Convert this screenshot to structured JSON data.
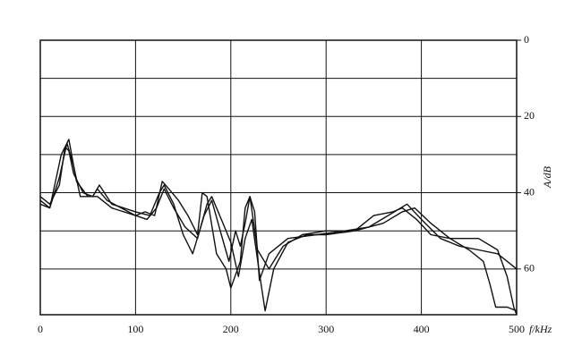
{
  "chart_data": {
    "type": "line",
    "x_label": "f/kHz",
    "y_label": "A/dB",
    "xlim": [
      0,
      500
    ],
    "xticks": [
      0,
      100,
      200,
      300,
      400,
      500
    ],
    "ylim": [
      0,
      72
    ],
    "yticks": [
      0,
      20,
      40,
      60
    ],
    "minor_yticks": [
      10,
      30,
      50
    ],
    "y_inverted": true,
    "y_axis_side": "right",
    "grid": true,
    "series": [
      {
        "color": "#111111",
        "x": [
          0,
          10,
          20,
          26,
          30,
          35,
          45,
          55,
          60,
          70,
          85,
          100,
          110,
          120,
          128,
          135,
          145,
          155,
          165,
          170,
          175,
          185,
          195,
          200,
          210,
          215,
          220,
          228,
          240,
          255,
          275,
          300,
          330,
          350,
          370,
          380,
          395,
          410,
          430,
          450,
          465,
          472,
          478,
          490,
          500
        ],
        "values": [
          41,
          43,
          38,
          28,
          29,
          35,
          40,
          41,
          39,
          42,
          44,
          46,
          45,
          46,
          37,
          39,
          42,
          46,
          51,
          40,
          41,
          56,
          60,
          65,
          58,
          44,
          41,
          55,
          60,
          54,
          51,
          50,
          50,
          46,
          45,
          44,
          47,
          51,
          52,
          55,
          58,
          64,
          70,
          70,
          71
        ]
      },
      {
        "color": "#111111",
        "x": [
          0,
          10,
          20,
          28,
          35,
          42,
          55,
          62,
          75,
          100,
          115,
          125,
          130,
          140,
          150,
          160,
          172,
          180,
          190,
          198,
          205,
          210,
          215,
          220,
          225,
          230,
          240,
          260,
          290,
          320,
          345,
          365,
          385,
          400,
          420,
          440,
          460,
          480,
          490,
          500
        ],
        "values": [
          42,
          44,
          36,
          27,
          33,
          41,
          41,
          38,
          43,
          45,
          46,
          40,
          38,
          43,
          51,
          56,
          46,
          42,
          51,
          58,
          50,
          54,
          48,
          41,
          45,
          63,
          56,
          52,
          51,
          50,
          49,
          46,
          43,
          47,
          52,
          54,
          55,
          56,
          58,
          60
        ]
      },
      {
        "color": "#111111",
        "x": [
          0,
          10,
          22,
          30,
          38,
          50,
          60,
          75,
          100,
          112,
          122,
          130,
          140,
          152,
          165,
          175,
          180,
          190,
          200,
          208,
          215,
          222,
          230,
          236,
          245,
          260,
          280,
          300,
          330,
          360,
          380,
          393,
          410,
          430,
          460,
          480,
          490,
          497,
          500
        ],
        "values": [
          43,
          44,
          30,
          26,
          37,
          41,
          41,
          44,
          46,
          47,
          44,
          39,
          44,
          49,
          52,
          43,
          41,
          47,
          53,
          62,
          52,
          47,
          61,
          71,
          60,
          53,
          51,
          51,
          50,
          48,
          45,
          44,
          48,
          52,
          52,
          55,
          62,
          70,
          72
        ]
      }
    ]
  }
}
